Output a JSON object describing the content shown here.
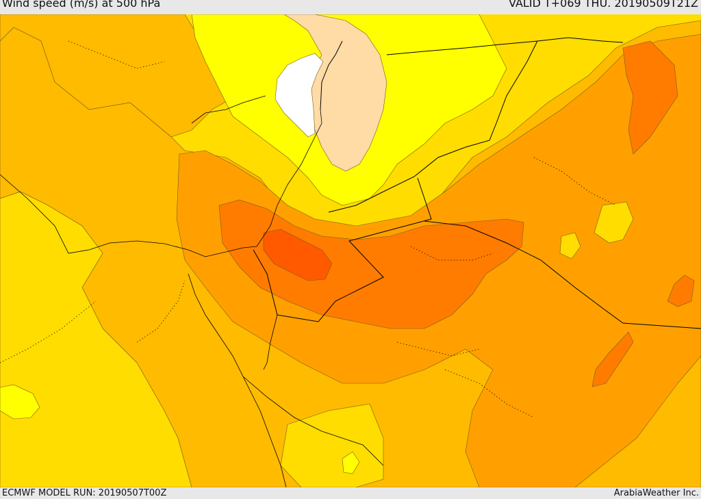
{
  "header": {
    "title": "Wind speed (m/s) at 500 hPa",
    "valid": "VALID T+069 THU. 20190509T21Z"
  },
  "footer": {
    "model_run": "ECMWF MODEL RUN: 20190507T00Z",
    "brand": "ArabiaWeather Inc."
  },
  "colors": {
    "lowest": "#ffffff",
    "very_low": "#ffdba6",
    "low": "#ffff00",
    "moderate": "#ffdd00",
    "elevated": "#ffbb00",
    "high": "#ffa000",
    "very_high": "#ff7c00",
    "highest": "#ff5a00",
    "border": "#000000"
  }
}
